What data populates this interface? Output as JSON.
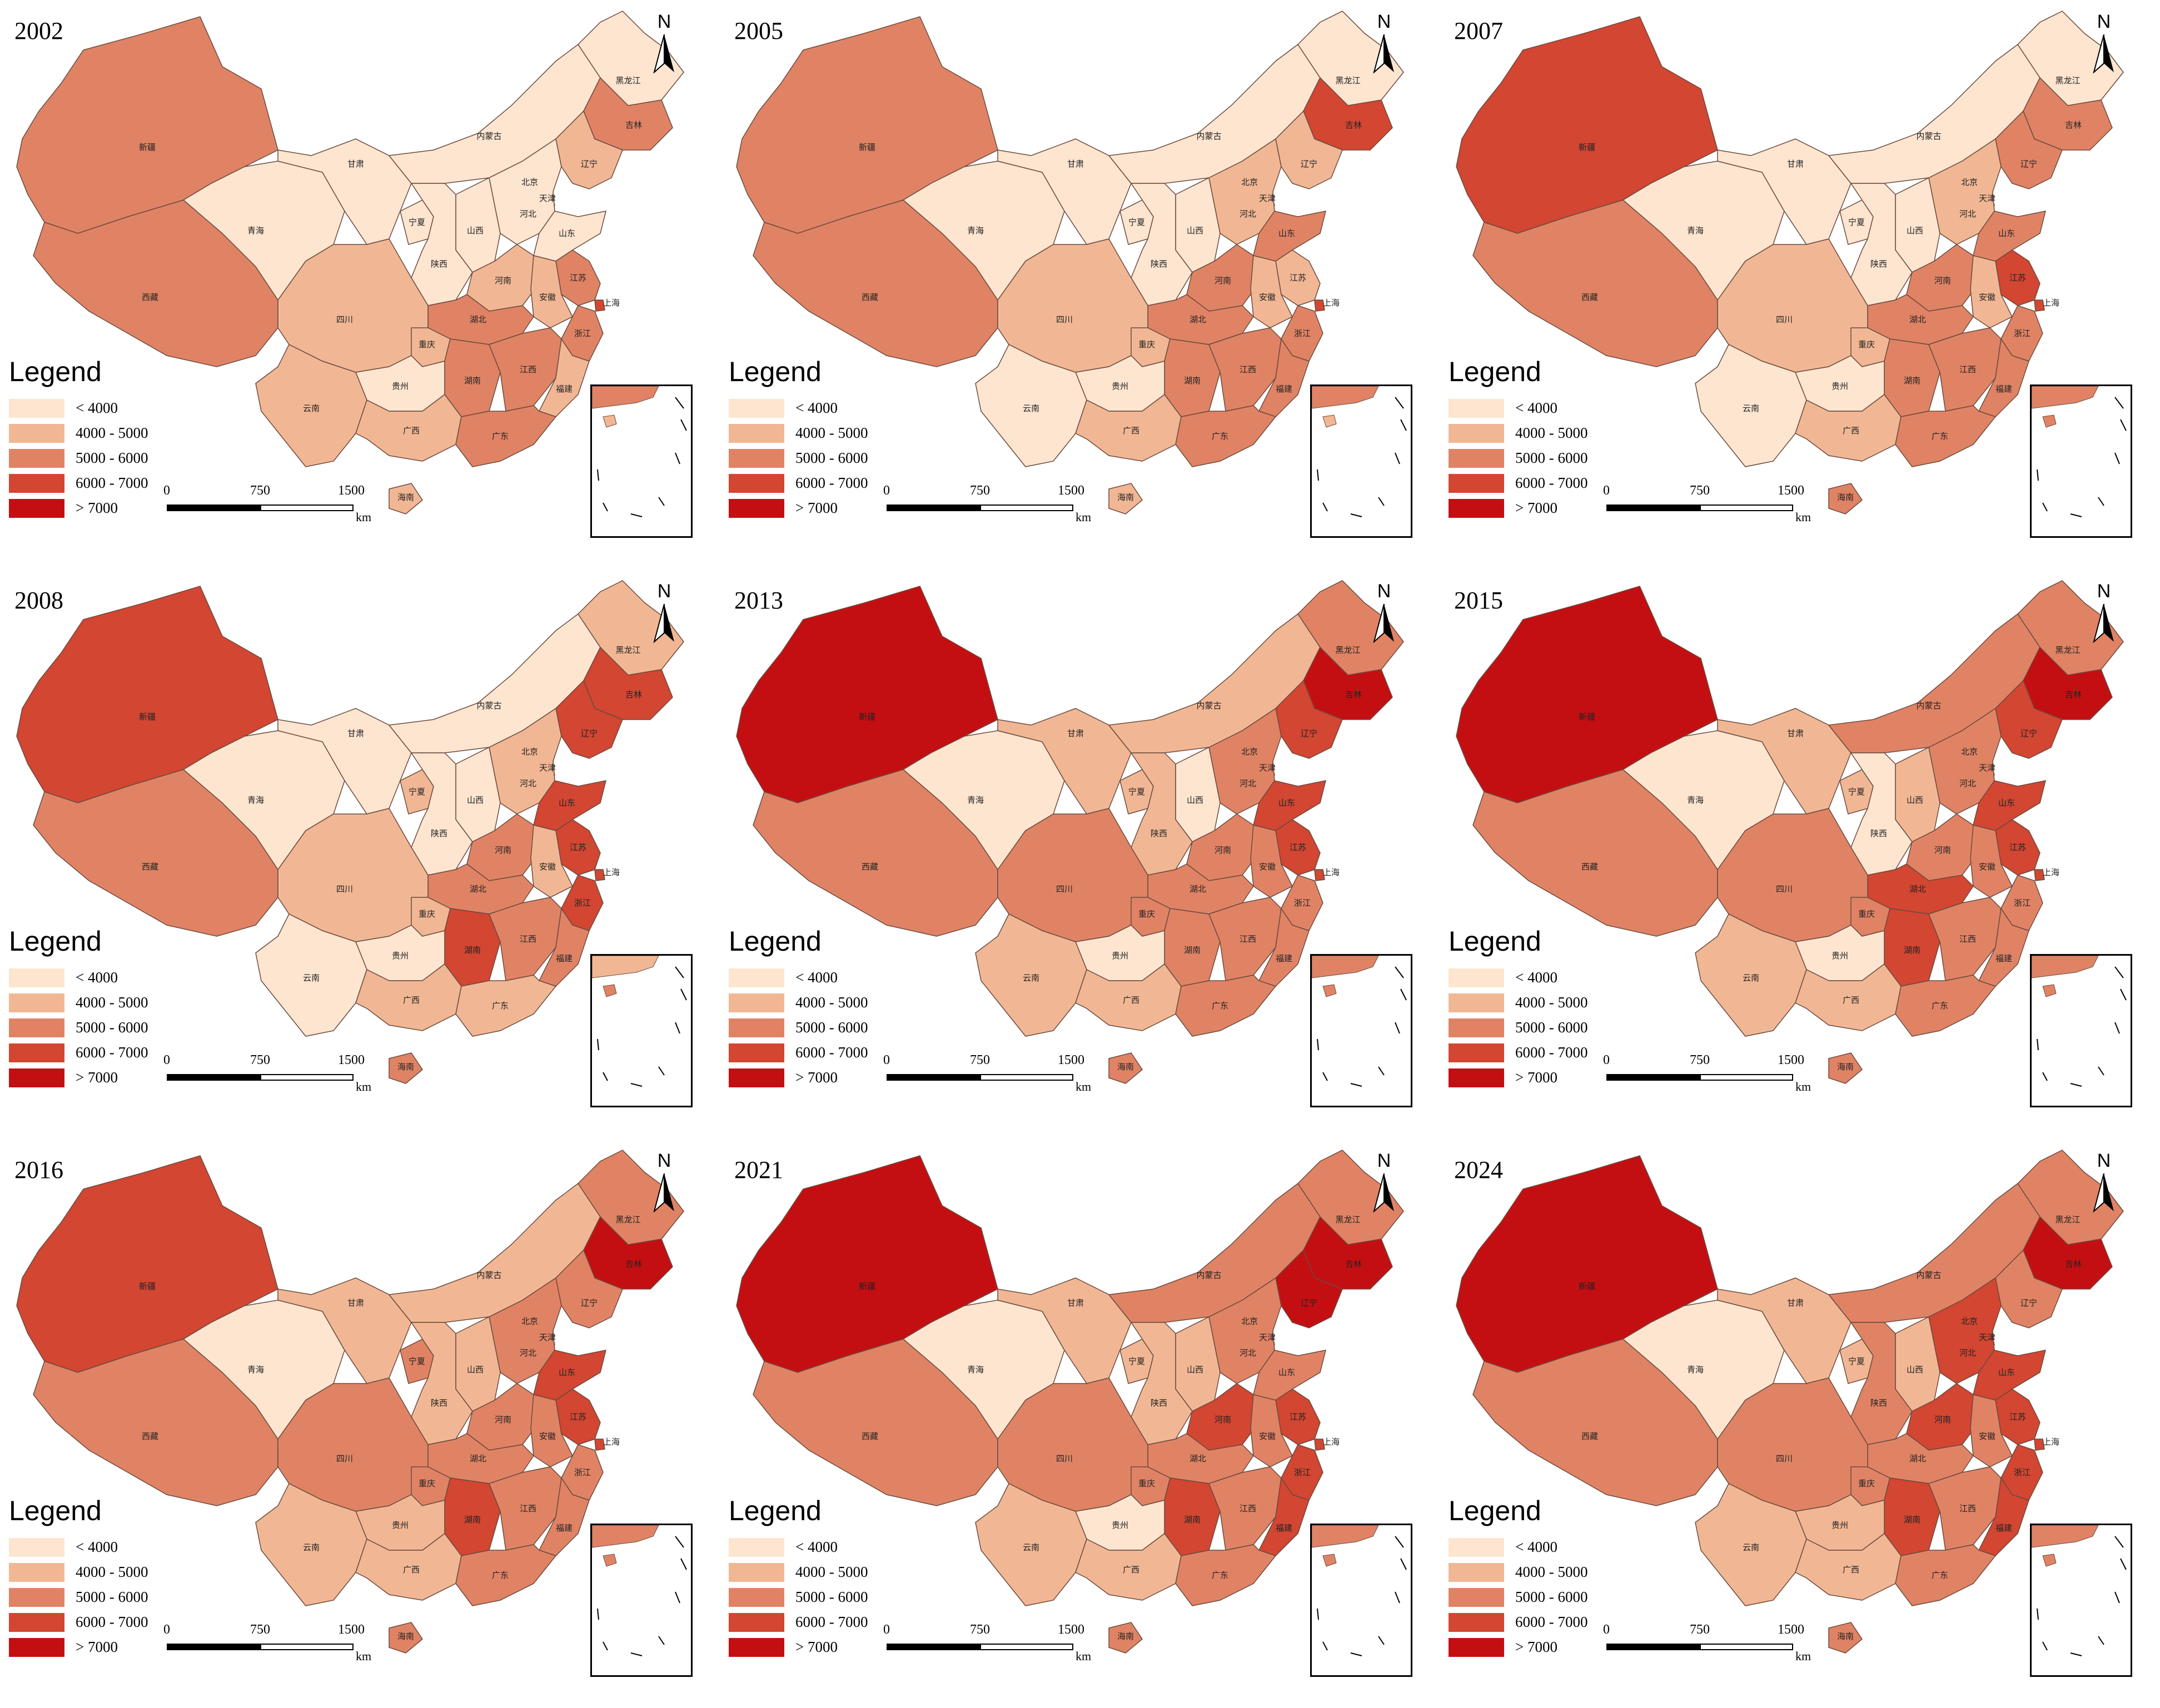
{
  "legend": {
    "title": "Legend",
    "classes": [
      {
        "label": "< 4000",
        "color": "#fde5d0"
      },
      {
        "label": "4000 - 5000",
        "color": "#f1b794"
      },
      {
        "label": "5000 - 6000",
        "color": "#e08365"
      },
      {
        "label": "6000 - 7000",
        "color": "#d24632"
      },
      {
        "label": "> 7000",
        "color": "#c40f12"
      }
    ]
  },
  "scale_bar": {
    "ticks": [
      "0",
      "750",
      "1500"
    ],
    "unit": "km"
  },
  "north_arrow": {
    "letter": "N",
    "icon": "north-arrow-icon"
  },
  "provinces": [
    "新疆",
    "西藏",
    "青海",
    "甘肃",
    "内蒙古",
    "黑龙江",
    "吉林",
    "辽宁",
    "北京",
    "天津",
    "河北",
    "山西",
    "宁夏",
    "陕西",
    "山东",
    "河南",
    "江苏",
    "安徽",
    "湖北",
    "四川",
    "重庆",
    "上海",
    "浙江",
    "湖南",
    "江西",
    "福建",
    "贵州",
    "云南",
    "广西",
    "广东",
    "海南"
  ],
  "panels": [
    {
      "year": "2002",
      "classes": {
        "新疆": 2,
        "西藏": 2,
        "青海": 0,
        "甘肃": 0,
        "内蒙古": 0,
        "黑龙江": 0,
        "吉林": 2,
        "辽宁": 1,
        "北京": 2,
        "天津": 1,
        "河北": 0,
        "山西": 0,
        "宁夏": 0,
        "陕西": 0,
        "山东": 0,
        "河南": 1,
        "江苏": 2,
        "安徽": 1,
        "湖北": 2,
        "四川": 1,
        "重庆": 1,
        "上海": 3,
        "浙江": 2,
        "湖南": 2,
        "江西": 2,
        "福建": 1,
        "贵州": 0,
        "云南": 1,
        "广西": 1,
        "广东": 2,
        "海南": 1
      }
    },
    {
      "year": "2005",
      "classes": {
        "新疆": 2,
        "西藏": 2,
        "青海": 0,
        "甘肃": 0,
        "内蒙古": 0,
        "黑龙江": 0,
        "吉林": 3,
        "辽宁": 1,
        "北京": 2,
        "天津": 1,
        "河北": 1,
        "山西": 0,
        "宁夏": 0,
        "陕西": 0,
        "山东": 2,
        "河南": 2,
        "江苏": 1,
        "安徽": 1,
        "湖北": 2,
        "四川": 1,
        "重庆": 1,
        "上海": 3,
        "浙江": 2,
        "湖南": 2,
        "江西": 2,
        "福建": 2,
        "贵州": 0,
        "云南": 0,
        "广西": 1,
        "广东": 2,
        "海南": 1
      }
    },
    {
      "year": "2007",
      "classes": {
        "新疆": 3,
        "西藏": 2,
        "青海": 0,
        "甘肃": 0,
        "内蒙古": 0,
        "黑龙江": 0,
        "吉林": 2,
        "辽宁": 2,
        "北京": 3,
        "天津": 2,
        "河北": 1,
        "山西": 0,
        "宁夏": 0,
        "陕西": 0,
        "山东": 2,
        "河南": 2,
        "江苏": 3,
        "安徽": 1,
        "湖北": 2,
        "四川": 1,
        "重庆": 1,
        "上海": 3,
        "浙江": 2,
        "湖南": 2,
        "江西": 2,
        "福建": 2,
        "贵州": 0,
        "云南": 0,
        "广西": 1,
        "广东": 2,
        "海南": 2
      }
    },
    {
      "year": "2008",
      "classes": {
        "新疆": 3,
        "西藏": 2,
        "青海": 0,
        "甘肃": 0,
        "内蒙古": 0,
        "黑龙江": 1,
        "吉林": 3,
        "辽宁": 3,
        "北京": 3,
        "天津": 2,
        "河北": 1,
        "山西": 0,
        "宁夏": 1,
        "陕西": 0,
        "山东": 3,
        "河南": 2,
        "江苏": 3,
        "安徽": 1,
        "湖北": 2,
        "四川": 1,
        "重庆": 1,
        "上海": 3,
        "浙江": 3,
        "湖南": 3,
        "江西": 2,
        "福建": 2,
        "贵州": 0,
        "云南": 0,
        "广西": 1,
        "广东": 1,
        "海南": 2
      }
    },
    {
      "year": "2013",
      "classes": {
        "新疆": 4,
        "西藏": 2,
        "青海": 0,
        "甘肃": 1,
        "内蒙古": 1,
        "黑龙江": 2,
        "吉林": 4,
        "辽宁": 3,
        "北京": 3,
        "天津": 2,
        "河北": 2,
        "山西": 0,
        "宁夏": 1,
        "陕西": 1,
        "山东": 3,
        "河南": 2,
        "江苏": 3,
        "安徽": 2,
        "湖北": 2,
        "四川": 2,
        "重庆": 2,
        "上海": 3,
        "浙江": 2,
        "湖南": 2,
        "江西": 2,
        "福建": 2,
        "贵州": 0,
        "云南": 1,
        "广西": 1,
        "广东": 2,
        "海南": 2
      }
    },
    {
      "year": "2015",
      "classes": {
        "新疆": 4,
        "西藏": 2,
        "青海": 0,
        "甘肃": 1,
        "内蒙古": 2,
        "黑龙江": 2,
        "吉林": 4,
        "辽宁": 3,
        "北京": 3,
        "天津": 2,
        "河北": 2,
        "山西": 1,
        "宁夏": 1,
        "陕西": 0,
        "山东": 3,
        "河南": 2,
        "江苏": 3,
        "安徽": 2,
        "湖北": 3,
        "四川": 2,
        "重庆": 2,
        "上海": 3,
        "浙江": 2,
        "湖南": 3,
        "江西": 2,
        "福建": 2,
        "贵州": 0,
        "云南": 1,
        "广西": 1,
        "广东": 2,
        "海南": 2
      }
    },
    {
      "year": "2016",
      "classes": {
        "新疆": 3,
        "西藏": 2,
        "青海": 0,
        "甘肃": 1,
        "内蒙古": 1,
        "黑龙江": 2,
        "吉林": 4,
        "辽宁": 2,
        "北京": 3,
        "天津": 2,
        "河北": 2,
        "山西": 1,
        "宁夏": 2,
        "陕西": 1,
        "山东": 3,
        "河南": 2,
        "江苏": 3,
        "安徽": 2,
        "湖北": 2,
        "四川": 2,
        "重庆": 2,
        "上海": 3,
        "浙江": 2,
        "湖南": 3,
        "江西": 2,
        "福建": 2,
        "贵州": 1,
        "云南": 1,
        "广西": 1,
        "广东": 2,
        "海南": 2
      }
    },
    {
      "year": "2021",
      "classes": {
        "新疆": 4,
        "西藏": 2,
        "青海": 0,
        "甘肃": 1,
        "内蒙古": 2,
        "黑龙江": 2,
        "吉林": 4,
        "辽宁": 4,
        "北京": 3,
        "天津": 2,
        "河北": 2,
        "山西": 1,
        "宁夏": 1,
        "陕西": 1,
        "山东": 2,
        "河南": 3,
        "江苏": 3,
        "安徽": 2,
        "湖北": 2,
        "四川": 2,
        "重庆": 2,
        "上海": 3,
        "浙江": 3,
        "湖南": 3,
        "江西": 2,
        "福建": 3,
        "贵州": 0,
        "云南": 1,
        "广西": 1,
        "广东": 2,
        "海南": 2
      }
    },
    {
      "year": "2024",
      "classes": {
        "新疆": 4,
        "西藏": 2,
        "青海": 0,
        "甘肃": 1,
        "内蒙古": 2,
        "黑龙江": 2,
        "吉林": 4,
        "辽宁": 2,
        "北京": 3,
        "天津": 3,
        "河北": 3,
        "山西": 1,
        "宁夏": 1,
        "陕西": 2,
        "山东": 3,
        "河南": 3,
        "江苏": 3,
        "安徽": 2,
        "湖北": 2,
        "四川": 2,
        "重庆": 2,
        "上海": 3,
        "浙江": 3,
        "湖南": 3,
        "江西": 2,
        "福建": 3,
        "贵州": 1,
        "云南": 1,
        "广西": 1,
        "广东": 2,
        "海南": 2
      }
    }
  ]
}
